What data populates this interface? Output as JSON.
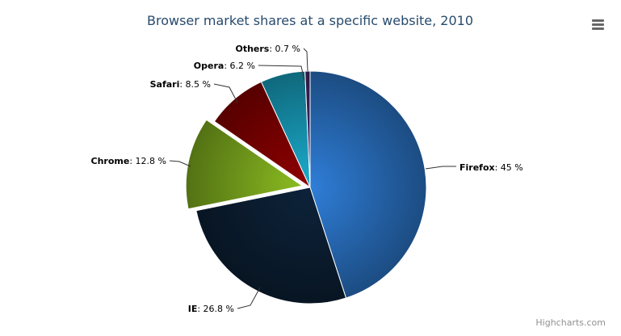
{
  "chart_data": {
    "type": "pie",
    "title": "Browser market shares at a specific website, 2010",
    "unit": "%",
    "slices": [
      {
        "name": "Firefox",
        "value": 45.0,
        "color": "#2f7ed8",
        "sliced": false
      },
      {
        "name": "IE",
        "value": 26.8,
        "color": "#0d233a",
        "sliced": false
      },
      {
        "name": "Chrome",
        "value": 12.8,
        "color": "#8bbc21",
        "sliced": true
      },
      {
        "name": "Safari",
        "value": 8.5,
        "color": "#910000",
        "sliced": false
      },
      {
        "name": "Opera",
        "value": 6.2,
        "color": "#1aadce",
        "sliced": false
      },
      {
        "name": "Others",
        "value": 0.7,
        "color": "#492970",
        "sliced": false
      }
    ],
    "labels": [
      "Firefox: 45 %",
      "IE: 26.8 %",
      "Chrome: 12.8 %",
      "Safari: 8.5 %",
      "Opera: 6.2 %",
      "Others: 0.7 %"
    ]
  },
  "menu_icon": "hamburger-menu-icon",
  "credit": "Highcharts.com"
}
